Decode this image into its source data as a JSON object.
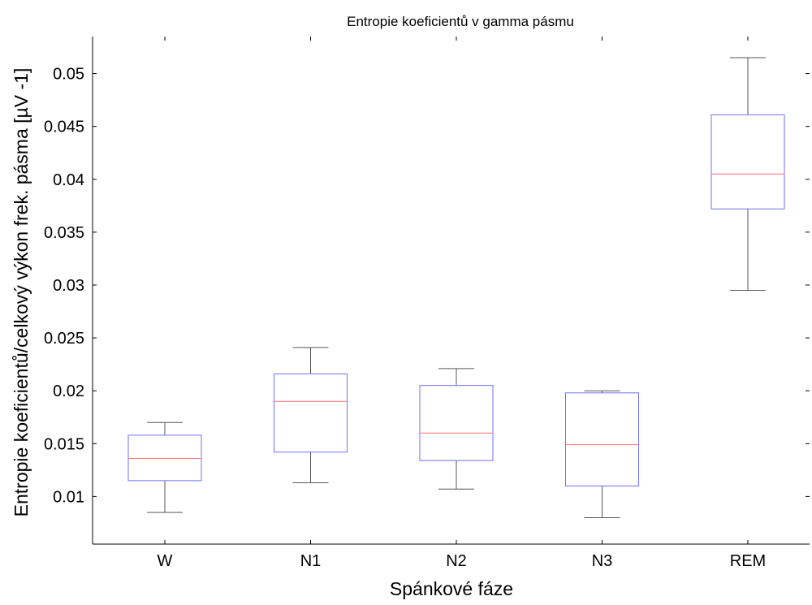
{
  "chart_data": {
    "type": "boxplot",
    "title": "Entropie koeficientů v gamma pásmu",
    "xlabel": "Spánkové fáze",
    "ylabel": "Entropie koeficientů/celkový výkon frek. pásma [µV -1]",
    "ylim": [
      0.0055,
      0.0535
    ],
    "yticks": [
      0.01,
      0.015,
      0.02,
      0.025,
      0.03,
      0.035,
      0.04,
      0.045,
      0.05
    ],
    "ytick_labels": [
      "0.01",
      "0.015",
      "0.02",
      "0.025",
      "0.03",
      "0.035",
      "0.04",
      "0.045",
      "0.05"
    ],
    "categories": [
      "W",
      "N1",
      "N2",
      "N3",
      "REM"
    ],
    "boxes": [
      {
        "label": "W",
        "whisker_low": 0.0085,
        "q1": 0.0115,
        "median": 0.0136,
        "q3": 0.0158,
        "whisker_high": 0.017
      },
      {
        "label": "N1",
        "whisker_low": 0.0113,
        "q1": 0.0142,
        "median": 0.019,
        "q3": 0.0216,
        "whisker_high": 0.0241
      },
      {
        "label": "N2",
        "whisker_low": 0.0107,
        "q1": 0.0134,
        "median": 0.016,
        "q3": 0.0205,
        "whisker_high": 0.0221
      },
      {
        "label": "N3",
        "whisker_low": 0.008,
        "q1": 0.011,
        "median": 0.0149,
        "q3": 0.0198,
        "whisker_high": 0.02
      },
      {
        "label": "REM",
        "whisker_low": 0.0295,
        "q1": 0.0372,
        "median": 0.0405,
        "q3": 0.0461,
        "whisker_high": 0.0515
      }
    ],
    "colors": {
      "box": "#6f6fff",
      "median": "#ff6f6f",
      "whisker": "#555555",
      "axis": "#000000"
    }
  }
}
